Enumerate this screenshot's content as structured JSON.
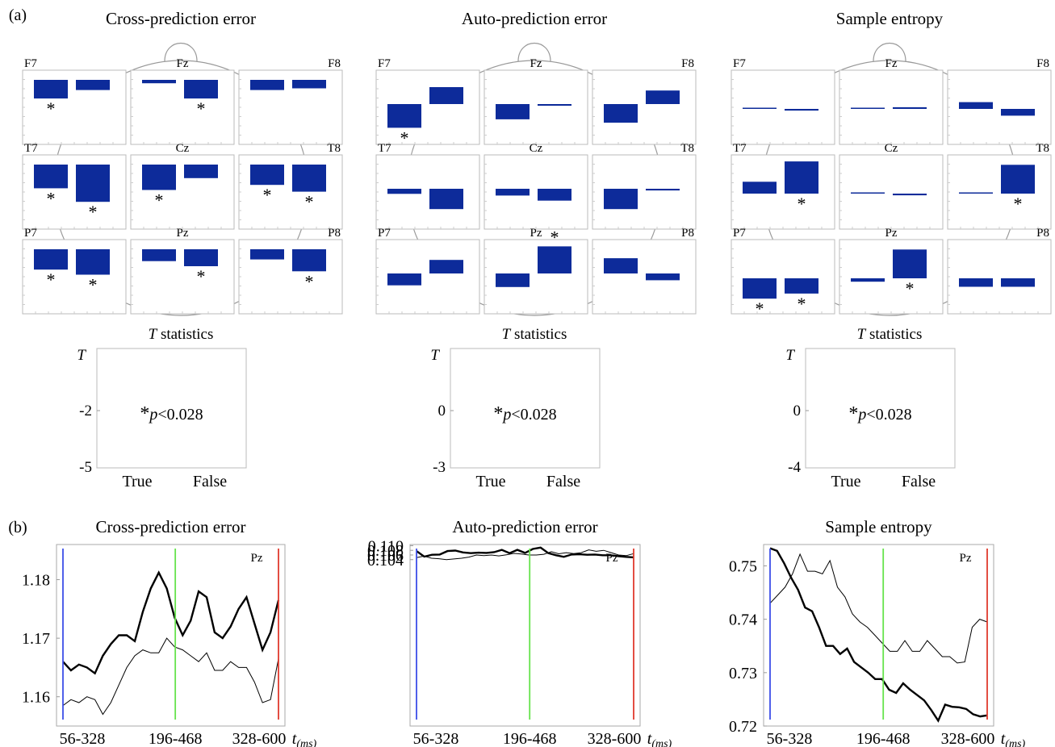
{
  "labels": {
    "panel_a": "(a)",
    "panel_b": "(b)",
    "tstat_title_italic": "T",
    "tstat_title_rest": " statistics",
    "taxis_label": "T",
    "sig_star": "*",
    "sig_p": "p",
    "sig_rest": "<0.028",
    "true_label": "True",
    "false_label": "False",
    "time_axis_t": "t",
    "time_axis_sub": "(ms)",
    "electrode": "Pz",
    "win1": "56-328",
    "win2": "196-468",
    "win3": "328-600"
  },
  "colors": {
    "bar": "#0d2b9a",
    "star": "#e0302a",
    "line1": "#3d4ee8",
    "line2": "#66e34d",
    "line3": "#e03a2e"
  },
  "chart_data": [
    {
      "type": "bar",
      "title": "Cross-prediction error",
      "electrodes": [
        "F7",
        "Fz",
        "F8",
        "T7",
        "Cz",
        "T8",
        "P7",
        "Pz",
        "P8"
      ],
      "categories": [
        "True",
        "False"
      ],
      "values": [
        [
          -0.55,
          -0.3
        ],
        [
          -0.1,
          -0.55
        ],
        [
          -0.3,
          -0.25
        ],
        [
          -0.7,
          -1.1
        ],
        [
          -0.75,
          -0.4
        ],
        [
          -0.6,
          -0.8
        ],
        [
          -0.6,
          -0.75
        ],
        [
          -0.35,
          -0.5
        ],
        [
          -0.3,
          -0.65
        ]
      ],
      "significant": [
        [
          true,
          false
        ],
        [
          false,
          true
        ],
        [
          false,
          false
        ],
        [
          true,
          true
        ],
        [
          true,
          false
        ],
        [
          true,
          true
        ],
        [
          true,
          true
        ],
        [
          false,
          true
        ],
        [
          false,
          true
        ]
      ],
      "tstat": {
        "yticks": [
          "-2",
          "-5"
        ],
        "annotation": "*p<0.028"
      }
    },
    {
      "type": "bar",
      "title": "Auto-prediction error",
      "electrodes": [
        "F7",
        "Fz",
        "F8",
        "T7",
        "Cz",
        "T8",
        "P7",
        "Pz",
        "P8"
      ],
      "categories": [
        "True",
        "False"
      ],
      "values": [
        [
          -0.7,
          0.5
        ],
        [
          -0.45,
          -0.05
        ],
        [
          -0.55,
          0.4
        ],
        [
          -0.15,
          -0.6
        ],
        [
          -0.2,
          -0.35
        ],
        [
          -0.6,
          -0.05
        ],
        [
          -0.35,
          0.4
        ],
        [
          -0.4,
          0.8
        ],
        [
          0.45,
          -0.2
        ]
      ],
      "significant": [
        [
          true,
          false
        ],
        [
          false,
          false
        ],
        [
          false,
          false
        ],
        [
          false,
          false
        ],
        [
          false,
          false
        ],
        [
          false,
          false
        ],
        [
          false,
          false
        ],
        [
          false,
          true
        ],
        [
          false,
          false
        ]
      ],
      "tstat": {
        "yticks": [
          "0",
          "-3"
        ],
        "annotation": "*p<0.028"
      }
    },
    {
      "type": "bar",
      "title": "Sample entropy",
      "electrodes": [
        "F7",
        "Fz",
        "F8",
        "T7",
        "Cz",
        "T8",
        "P7",
        "Pz",
        "P8"
      ],
      "categories": [
        "True",
        "False"
      ],
      "values": [
        [
          0.02,
          -0.05
        ],
        [
          0.02,
          0.05
        ],
        [
          0.2,
          -0.2
        ],
        [
          0.35,
          0.95
        ],
        [
          0.02,
          -0.05
        ],
        [
          0.02,
          0.85
        ],
        [
          -0.6,
          -0.45
        ],
        [
          -0.1,
          0.85
        ],
        [
          -0.25,
          -0.25
        ]
      ],
      "significant": [
        [
          false,
          false
        ],
        [
          false,
          false
        ],
        [
          false,
          false
        ],
        [
          false,
          true
        ],
        [
          false,
          false
        ],
        [
          false,
          true
        ],
        [
          true,
          true
        ],
        [
          false,
          true
        ],
        [
          false,
          false
        ]
      ],
      "tstat": {
        "yticks": [
          "0",
          "-4"
        ],
        "annotation": "*p<0.028"
      }
    },
    {
      "type": "line",
      "title": "Cross-prediction error",
      "ylim": [
        1.155,
        1.186
      ],
      "yticks": [
        1.16,
        1.17,
        1.18
      ],
      "ytick_labels": [
        "1.16",
        "1.17",
        "1.18"
      ],
      "series": [
        {
          "values": [
            1.166,
            1.1645,
            1.1655,
            1.165,
            1.164,
            1.167,
            1.169,
            1.1705,
            1.1705,
            1.1695,
            1.1745,
            1.1785,
            1.1812,
            1.1785,
            1.1735,
            1.1705,
            1.173,
            1.178,
            1.177,
            1.171,
            1.17,
            1.172,
            1.175,
            1.177,
            1.1725,
            1.168,
            1.171,
            1.1765
          ]
        },
        {
          "values": [
            1.1585,
            1.1595,
            1.159,
            1.16,
            1.1595,
            1.157,
            1.159,
            1.162,
            1.165,
            1.167,
            1.168,
            1.1675,
            1.1675,
            1.17,
            1.1685,
            1.168,
            1.167,
            1.166,
            1.1675,
            1.1645,
            1.1645,
            1.166,
            1.165,
            1.165,
            1.1625,
            1.159,
            1.1595,
            1.1665
          ]
        }
      ]
    },
    {
      "type": "line",
      "title": "Auto-prediction error",
      "ylim": [
        1.0325,
        1.1105
      ],
      "yticks": [
        0.104,
        0.106,
        0.108,
        0.11
      ],
      "ytick_labels": [
        "0.104",
        "0.106",
        "0.108",
        "0.110"
      ],
      "series": [
        {
          "values": [
            0.1077,
            0.1053,
            0.1061,
            0.1062,
            0.1077,
            0.1079,
            0.1071,
            0.1068,
            0.107,
            0.1069,
            0.1072,
            0.1082,
            0.1068,
            0.1082,
            0.1069,
            0.1086,
            0.1092,
            0.1068,
            0.1059,
            0.1052,
            0.1062,
            0.1063,
            0.1061,
            0.1062,
            0.1059,
            0.1059,
            0.1055,
            0.1052,
            0.105
          ]
        },
        {
          "values": [
            0.1049,
            0.1055,
            0.1046,
            0.1044,
            0.104,
            0.1043,
            0.1046,
            0.1051,
            0.106,
            0.1057,
            0.106,
            0.1056,
            0.1061,
            0.1067,
            0.1064,
            0.106,
            0.106,
            0.1063,
            0.1074,
            0.1065,
            0.107,
            0.1066,
            0.107,
            0.1082,
            0.1076,
            0.108,
            0.107,
            0.106,
            0.1057,
            0.1066
          ]
        }
      ]
    },
    {
      "type": "line",
      "title": "Sample entropy",
      "ylim": [
        0.72,
        0.754
      ],
      "yticks": [
        0.72,
        0.73,
        0.74,
        0.75
      ],
      "ytick_labels": [
        "0.72",
        "0.73",
        "0.74",
        "0.75"
      ],
      "series": [
        {
          "values": [
            0.7533,
            0.7528,
            0.7505,
            0.7478,
            0.7455,
            0.7422,
            0.7415,
            0.7385,
            0.735,
            0.735,
            0.7335,
            0.7345,
            0.732,
            0.731,
            0.73,
            0.7288,
            0.7288,
            0.7268,
            0.7262,
            0.728,
            0.7268,
            0.7258,
            0.7248,
            0.723,
            0.721,
            0.724,
            0.7236,
            0.7235,
            0.7232,
            0.7222,
            0.7218,
            0.722
          ]
        },
        {
          "values": [
            0.743,
            0.7445,
            0.746,
            0.7485,
            0.7522,
            0.749,
            0.749,
            0.7485,
            0.751,
            0.746,
            0.7442,
            0.741,
            0.7395,
            0.7385,
            0.737,
            0.7355,
            0.734,
            0.734,
            0.736,
            0.734,
            0.734,
            0.736,
            0.7345,
            0.733,
            0.733,
            0.7318,
            0.732,
            0.7385,
            0.74,
            0.7395
          ]
        }
      ]
    }
  ]
}
